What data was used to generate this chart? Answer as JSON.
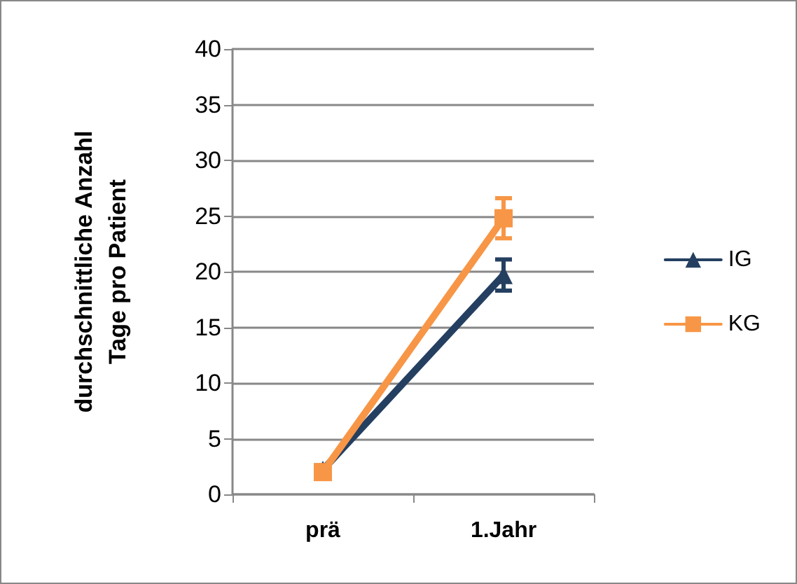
{
  "chart_data": {
    "type": "line",
    "ylabel": "durchschnittliche Anzahl\nTage pro Patient",
    "categories": [
      "prä",
      "1.Jahr"
    ],
    "series": [
      {
        "name": "IG",
        "color": "#243f60",
        "values": [
          2.2,
          19.7
        ],
        "errors": [
          0.4,
          1.4
        ],
        "marker": "triangle"
      },
      {
        "name": "KG",
        "color": "#f79646",
        "values": [
          2.0,
          24.8
        ],
        "errors": [
          0.4,
          1.8
        ],
        "marker": "square"
      }
    ],
    "ylim": [
      0,
      40
    ],
    "yticks": [
      0,
      5,
      10,
      15,
      20,
      25,
      30,
      35,
      40
    ],
    "grid": "y",
    "legend": "right",
    "line_style": "solid"
  }
}
